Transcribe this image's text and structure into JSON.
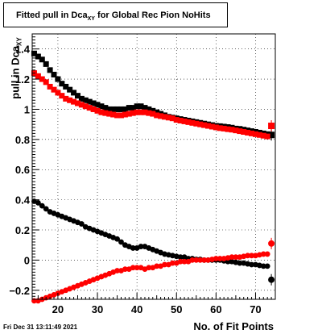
{
  "title": {
    "main": "Fitted pull in Dca",
    "subscript": "XY",
    "rest": " for Global Rec Pion NoHits"
  },
  "ylabel": {
    "main": "pull in Dca",
    "subscript": "XY"
  },
  "xlabel": "No. of Fit Points",
  "timestamp": "Fri Dec 31 13:11:49 2021",
  "colors": {
    "black": "#000000",
    "red": "#ff0000",
    "grid": "#000000"
  },
  "chart_data": {
    "type": "scatter",
    "xlim": [
      13.5,
      75
    ],
    "ylim": [
      -0.26,
      1.5
    ],
    "grid": true,
    "x_ticks": [
      20,
      30,
      40,
      50,
      60,
      70
    ],
    "y_ticks": [
      -0.2,
      0,
      0.2,
      0.4,
      0.6,
      0.8,
      1,
      1.2,
      1.4
    ],
    "x_tick_labels": [
      "20",
      "30",
      "40",
      "50",
      "60",
      "70"
    ],
    "y_tick_labels": [
      "−0.2",
      "0",
      "0.2",
      "0.4",
      "0.6",
      "0.8",
      "1",
      "1.2",
      "1.4"
    ],
    "series": [
      {
        "color": "#000000",
        "marker": "square",
        "x": [
          14,
          15,
          16,
          17,
          18,
          19,
          20,
          21,
          22,
          23,
          24,
          25,
          26,
          27,
          28,
          29,
          30,
          31,
          32,
          33,
          34,
          35,
          36,
          37,
          38,
          39,
          40,
          41,
          42,
          43,
          44,
          45,
          46,
          47,
          48,
          49,
          50,
          51,
          52,
          53,
          54,
          55,
          56,
          57,
          58,
          59,
          60,
          61,
          62,
          63,
          64,
          65,
          66,
          67,
          68,
          69,
          70,
          71,
          72,
          73,
          74
        ],
        "y": [
          1.37,
          1.35,
          1.33,
          1.3,
          1.26,
          1.23,
          1.2,
          1.17,
          1.15,
          1.13,
          1.11,
          1.09,
          1.07,
          1.06,
          1.05,
          1.04,
          1.03,
          1.02,
          1.01,
          1.0,
          1.0,
          1.0,
          1.0,
          1.0,
          1.01,
          1.01,
          1.02,
          1.02,
          1.01,
          1.0,
          0.99,
          0.98,
          0.97,
          0.96,
          0.95,
          0.945,
          0.94,
          0.935,
          0.93,
          0.925,
          0.92,
          0.915,
          0.91,
          0.905,
          0.9,
          0.895,
          0.89,
          0.888,
          0.885,
          0.882,
          0.878,
          0.872,
          0.87,
          0.865,
          0.86,
          0.855,
          0.85,
          0.845,
          0.84,
          0.835,
          0.83
        ]
      },
      {
        "color": "#ff0000",
        "marker": "square",
        "x": [
          14,
          15,
          16,
          17,
          18,
          19,
          20,
          21,
          22,
          23,
          24,
          25,
          26,
          27,
          28,
          29,
          30,
          31,
          32,
          33,
          34,
          35,
          36,
          37,
          38,
          39,
          40,
          41,
          42,
          43,
          44,
          45,
          46,
          47,
          48,
          49,
          50,
          51,
          52,
          53,
          54,
          55,
          56,
          57,
          58,
          59,
          60,
          61,
          62,
          63,
          64,
          65,
          66,
          67,
          68,
          69,
          70,
          71,
          72,
          73,
          74
        ],
        "y": [
          1.24,
          1.22,
          1.2,
          1.18,
          1.15,
          1.13,
          1.11,
          1.09,
          1.07,
          1.06,
          1.05,
          1.04,
          1.03,
          1.02,
          1.01,
          1.0,
          0.99,
          0.98,
          0.975,
          0.97,
          0.965,
          0.96,
          0.96,
          0.965,
          0.97,
          0.975,
          0.98,
          0.98,
          0.98,
          0.975,
          0.97,
          0.96,
          0.955,
          0.95,
          0.945,
          0.94,
          0.93,
          0.925,
          0.92,
          0.915,
          0.91,
          0.905,
          0.9,
          0.895,
          0.89,
          0.885,
          0.88,
          0.875,
          0.872,
          0.868,
          0.865,
          0.86,
          0.855,
          0.85,
          0.845,
          0.84,
          0.835,
          0.83,
          0.825,
          0.82,
          0.89
        ]
      },
      {
        "color": "#000000",
        "marker": "circle",
        "x": [
          14,
          15,
          16,
          17,
          18,
          19,
          20,
          21,
          22,
          23,
          24,
          25,
          26,
          27,
          28,
          29,
          30,
          31,
          32,
          33,
          34,
          35,
          36,
          37,
          38,
          39,
          40,
          41,
          42,
          43,
          44,
          45,
          46,
          47,
          48,
          49,
          50,
          51,
          52,
          53,
          54,
          55,
          56,
          57,
          58,
          59,
          60,
          61,
          62,
          63,
          64,
          65,
          66,
          67,
          68,
          69,
          70,
          71,
          72,
          73,
          74
        ],
        "y": [
          0.39,
          0.38,
          0.36,
          0.34,
          0.32,
          0.31,
          0.3,
          0.29,
          0.28,
          0.27,
          0.26,
          0.25,
          0.24,
          0.22,
          0.21,
          0.2,
          0.19,
          0.18,
          0.17,
          0.16,
          0.15,
          0.14,
          0.12,
          0.1,
          0.09,
          0.08,
          0.08,
          0.09,
          0.09,
          0.08,
          0.07,
          0.06,
          0.05,
          0.04,
          0.035,
          0.03,
          0.025,
          0.02,
          0.02,
          0.01,
          0.01,
          0.005,
          0.005,
          0.0,
          0.0,
          0.0,
          0.0,
          0.0,
          -0.005,
          -0.01,
          -0.01,
          -0.015,
          -0.02,
          -0.02,
          -0.025,
          -0.03,
          -0.03,
          -0.035,
          -0.04,
          -0.04,
          -0.13
        ]
      },
      {
        "color": "#ff0000",
        "marker": "circle",
        "x": [
          14,
          15,
          16,
          17,
          18,
          19,
          20,
          21,
          22,
          23,
          24,
          25,
          26,
          27,
          28,
          29,
          30,
          31,
          32,
          33,
          34,
          35,
          36,
          37,
          38,
          39,
          40,
          41,
          42,
          43,
          44,
          45,
          46,
          47,
          48,
          49,
          50,
          51,
          52,
          53,
          54,
          55,
          56,
          57,
          58,
          59,
          60,
          61,
          62,
          63,
          64,
          65,
          66,
          67,
          68,
          69,
          70,
          71,
          72,
          73,
          74
        ],
        "y": [
          -0.27,
          -0.27,
          -0.26,
          -0.25,
          -0.24,
          -0.23,
          -0.22,
          -0.21,
          -0.2,
          -0.19,
          -0.18,
          -0.17,
          -0.16,
          -0.15,
          -0.14,
          -0.13,
          -0.12,
          -0.11,
          -0.1,
          -0.09,
          -0.08,
          -0.07,
          -0.07,
          -0.06,
          -0.06,
          -0.05,
          -0.05,
          -0.05,
          -0.06,
          -0.05,
          -0.05,
          -0.04,
          -0.04,
          -0.03,
          -0.03,
          -0.02,
          -0.02,
          -0.01,
          -0.01,
          -0.01,
          0.0,
          0.0,
          0.0,
          0.0,
          0.0,
          0.005,
          0.01,
          0.01,
          0.01,
          0.015,
          0.02,
          0.02,
          0.02,
          0.025,
          0.03,
          0.03,
          0.03,
          0.035,
          0.04,
          0.04,
          0.11
        ]
      }
    ]
  }
}
